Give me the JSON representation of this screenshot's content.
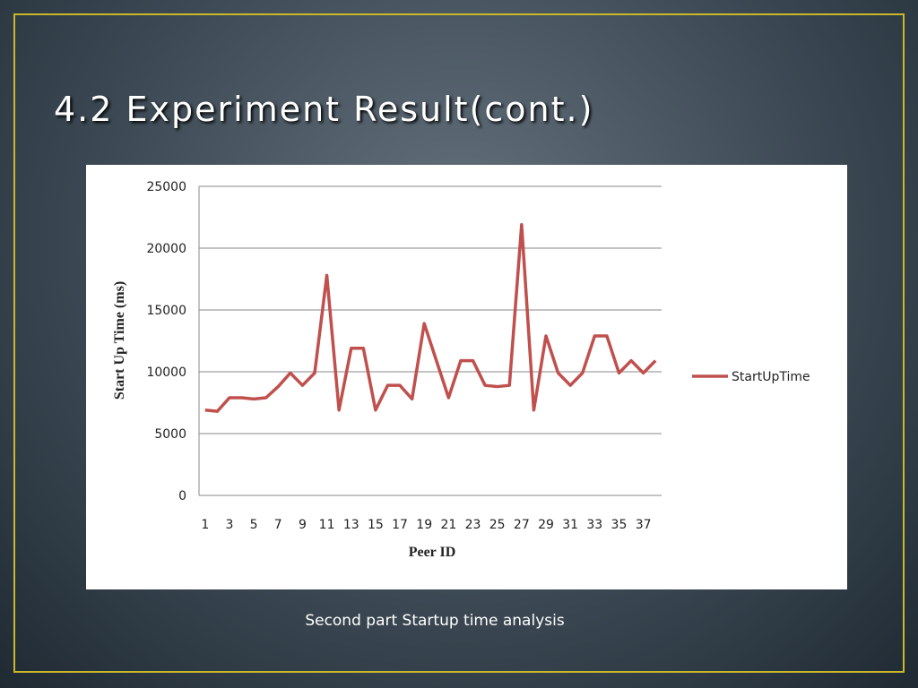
{
  "slide_title": "4.2 Experiment Result(cont.)",
  "caption": "Second part Startup time analysis",
  "chart_data": {
    "type": "line",
    "x_label": "Peer ID",
    "y_label": "Start Up  Time (ms)",
    "categories": [
      "1",
      null,
      "3",
      null,
      "5",
      null,
      "7",
      null,
      "9",
      null,
      "11",
      null,
      "13",
      null,
      "15",
      null,
      "17",
      null,
      "19",
      null,
      "21",
      null,
      "23",
      null,
      "25",
      null,
      "27",
      null,
      "29",
      null,
      "31",
      null,
      "33",
      null,
      "35",
      null,
      "37",
      null
    ],
    "series": [
      {
        "name": "StartUpTime",
        "color": "#c0504d",
        "values": [
          6900,
          6800,
          7900,
          7900,
          7800,
          7900,
          8800,
          9900,
          8900,
          9900,
          17800,
          6900,
          11900,
          11900,
          6900,
          8900,
          8900,
          7800,
          13900,
          10900,
          7900,
          10900,
          10900,
          8900,
          8800,
          8900,
          21900,
          6900,
          12900,
          9900,
          8900,
          9900,
          12900,
          12900,
          9900,
          10900,
          9900,
          10900
        ]
      }
    ],
    "ylim": [
      0,
      25000
    ],
    "yticks": [
      0,
      5000,
      10000,
      15000,
      20000,
      25000
    ],
    "grid": true,
    "legend": "right"
  }
}
